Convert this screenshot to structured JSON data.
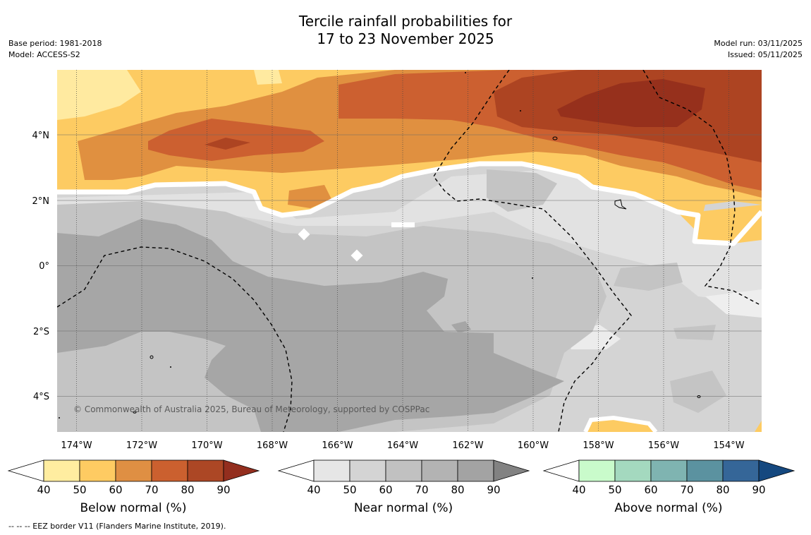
{
  "title": {
    "line1": "Tercile rainfall probabilities for",
    "line2": "17 to 23 November 2025"
  },
  "meta": {
    "base_period": "Base period: 1981-2018",
    "model": "Model: ACCESS-S2",
    "model_run": "Model run: 03/11/2025",
    "issued": "Issued: 05/11/2025"
  },
  "map": {
    "lon_labels": [
      "174°W",
      "172°W",
      "170°W",
      "168°W",
      "166°W",
      "164°W",
      "162°W",
      "160°W",
      "158°W",
      "156°W",
      "154°W"
    ],
    "lat_labels": [
      "4°N",
      "2°N",
      "0°",
      "2°S",
      "4°S"
    ],
    "copyright": "© Commonwealth of Australia 2025, Bureau of Meteorology, supported by COSPPac",
    "colors": {
      "near_light": "#e6e6e6",
      "near_mid": "#d3d3d3",
      "near_dark": "#c2c2c2",
      "near_darker": "#a5a5a5",
      "below_40": "#ffeaa0",
      "below_50": "#fdcb62",
      "below_60": "#e09040",
      "below_70": "#cc6030",
      "below_80": "#ad4422",
      "below_90": "#96301c"
    }
  },
  "colorbars": [
    {
      "title": "Below normal (%)",
      "ticks": [
        "40",
        "50",
        "60",
        "70",
        "80",
        "90"
      ],
      "colors": [
        "#ffeda0",
        "#fecb62",
        "#df8f43",
        "#cb602f",
        "#ac4725",
        "#932e1e"
      ]
    },
    {
      "title": "Near normal (%)",
      "ticks": [
        "40",
        "50",
        "60",
        "70",
        "80",
        "90"
      ],
      "colors": [
        "#e6e6e6",
        "#d4d4d4",
        "#c1c1c1",
        "#b3b3b3",
        "#a3a3a3",
        "#828282"
      ]
    },
    {
      "title": "Above normal (%)",
      "ticks": [
        "40",
        "50",
        "60",
        "70",
        "80",
        "90"
      ],
      "colors": [
        "#c9fbcb",
        "#a4d9bf",
        "#7fb4b1",
        "#5b92a0",
        "#356698",
        "#15487f"
      ]
    }
  ],
  "footnote": "--  --  -- EEZ border V11 (Flanders Marine Institute, 2019)."
}
